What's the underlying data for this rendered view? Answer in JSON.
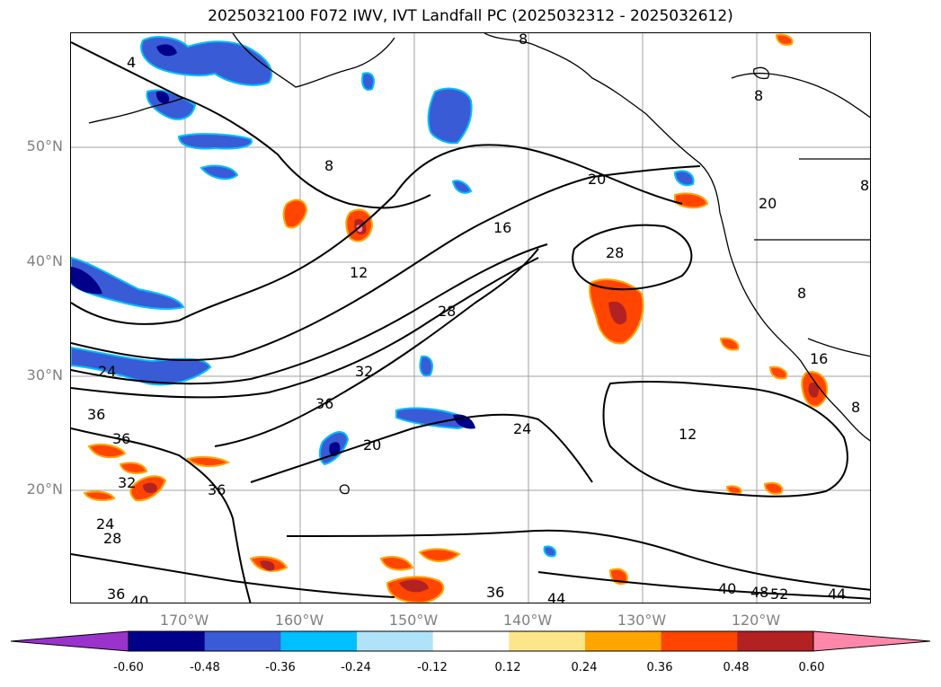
{
  "title": "2025032100 F072 IWV, IVT Landfall PC (2025032312 - 2025032612)",
  "lat_labels": [
    "50°N",
    "40°N",
    "30°N",
    "20°N"
  ],
  "lon_labels": [
    "170°W",
    "160°W",
    "150°W",
    "140°W",
    "130°W",
    "120°W"
  ],
  "colorbar": {
    "levels": [
      "-0.60",
      "-0.48",
      "-0.36",
      "-0.24",
      "-0.12",
      "0.12",
      "0.24",
      "0.36",
      "0.48",
      "0.60"
    ],
    "colors": [
      "#9933cc",
      "#00008b",
      "#3a5bd6",
      "#00bfff",
      "#aee3fa",
      "#ffffff",
      "#fde68a",
      "#ffa500",
      "#ff4500",
      "#b22222",
      "#ff88aa"
    ]
  },
  "contour_labels": [
    "4",
    "8",
    "8",
    "8",
    "12",
    "16",
    "20",
    "20",
    "28",
    "28",
    "32",
    "36",
    "24",
    "36",
    "36",
    "32",
    "36",
    "24",
    "28",
    "20",
    "24",
    "12",
    "36",
    "44",
    "40",
    "48",
    "52",
    "44",
    "36",
    "40",
    "8",
    "16",
    "8",
    "8"
  ]
}
